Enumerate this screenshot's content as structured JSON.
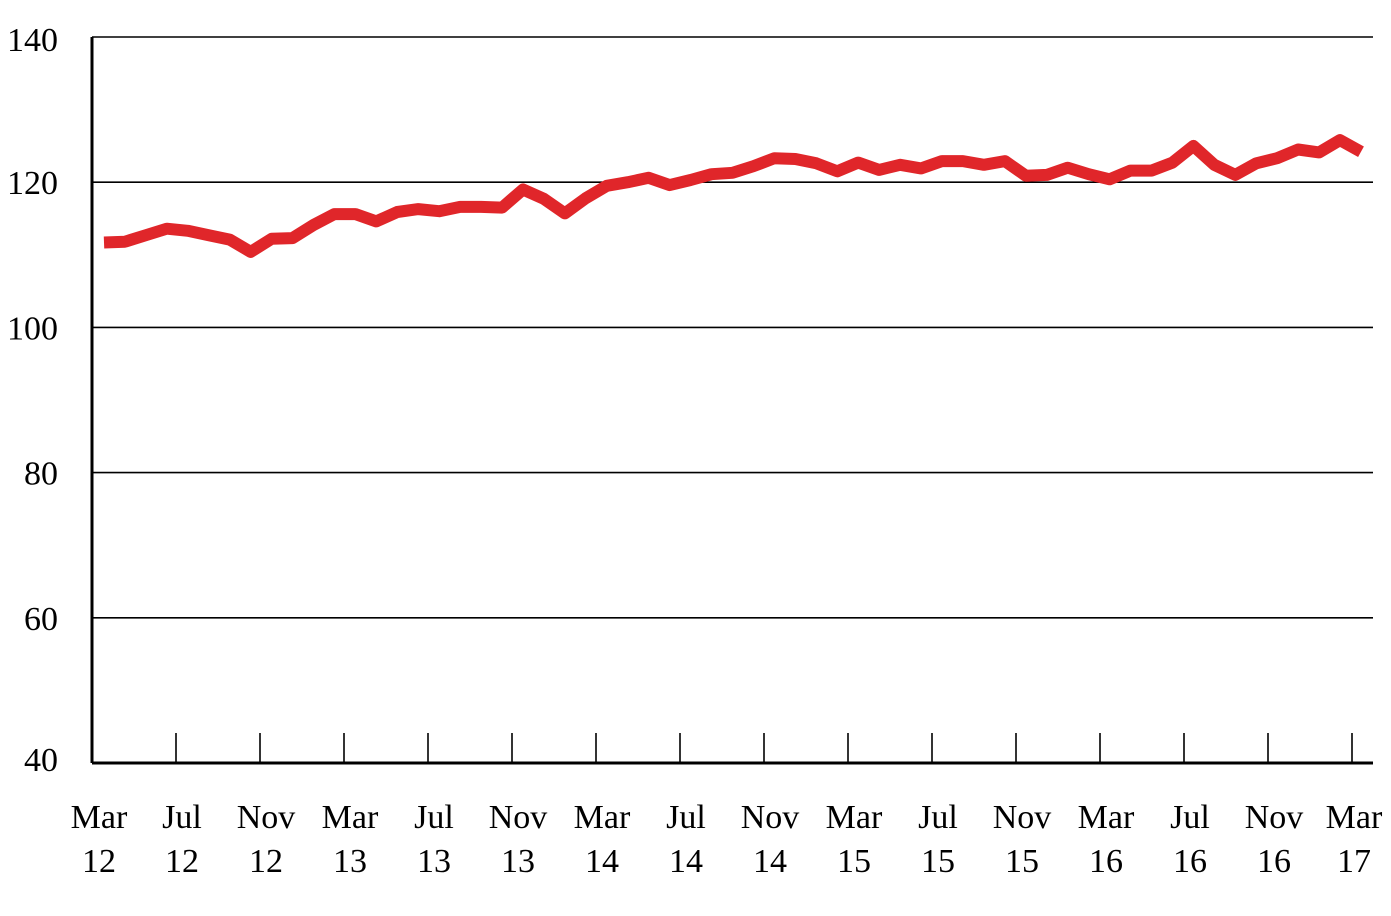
{
  "chart_data": {
    "type": "line",
    "title": "",
    "xlabel": "",
    "ylabel": "",
    "ylim": [
      40,
      140
    ],
    "yticks": [
      40,
      60,
      80,
      100,
      120,
      140
    ],
    "grid": "horizontal",
    "legend": "none",
    "line_color": "#e0262a",
    "x_tick_labels": [
      [
        "Mar",
        "12"
      ],
      [
        "Jul",
        "12"
      ],
      [
        "Nov",
        "12"
      ],
      [
        "Mar",
        "13"
      ],
      [
        "Jul",
        "13"
      ],
      [
        "Nov",
        "13"
      ],
      [
        "Mar",
        "14"
      ],
      [
        "Jul",
        "14"
      ],
      [
        "Nov",
        "14"
      ],
      [
        "Mar",
        "15"
      ],
      [
        "Jul",
        "15"
      ],
      [
        "Nov",
        "15"
      ],
      [
        "Mar",
        "16"
      ],
      [
        "Jul",
        "16"
      ],
      [
        "Nov",
        "16"
      ],
      [
        "Mar",
        "17"
      ]
    ],
    "x": [
      "2012-03",
      "2012-04",
      "2012-05",
      "2012-06",
      "2012-07",
      "2012-08",
      "2012-09",
      "2012-10",
      "2012-11",
      "2012-12",
      "2013-01",
      "2013-02",
      "2013-03",
      "2013-04",
      "2013-05",
      "2013-06",
      "2013-07",
      "2013-08",
      "2013-09",
      "2013-10",
      "2013-11",
      "2013-12",
      "2014-01",
      "2014-02",
      "2014-03",
      "2014-04",
      "2014-05",
      "2014-06",
      "2014-07",
      "2014-08",
      "2014-09",
      "2014-10",
      "2014-11",
      "2014-12",
      "2015-01",
      "2015-02",
      "2015-03",
      "2015-04",
      "2015-05",
      "2015-06",
      "2015-07",
      "2015-08",
      "2015-09",
      "2015-10",
      "2015-11",
      "2015-12",
      "2016-01",
      "2016-02",
      "2016-03",
      "2016-04",
      "2016-05",
      "2016-06",
      "2016-07",
      "2016-08",
      "2016-09",
      "2016-10",
      "2016-11",
      "2016-12",
      "2017-01",
      "2017-02",
      "2017-03"
    ],
    "series": [
      {
        "values": [
          111.7,
          111.8,
          112.7,
          113.6,
          113.3,
          112.7,
          112.1,
          110.4,
          112.2,
          112.3,
          114.1,
          115.6,
          115.6,
          114.6,
          115.9,
          116.3,
          116.0,
          116.6,
          116.6,
          116.5,
          119.0,
          117.7,
          115.7,
          117.8,
          119.5,
          120.0,
          120.6,
          119.6,
          120.3,
          121.1,
          121.3,
          122.2,
          123.3,
          123.2,
          122.6,
          121.5,
          122.7,
          121.7,
          122.4,
          121.9,
          122.9,
          122.9,
          122.4,
          122.9,
          120.9,
          121.0,
          122.0,
          121.1,
          120.4,
          121.6,
          121.6,
          122.7,
          125.0,
          122.4,
          121.0,
          122.6,
          123.3,
          124.5,
          124.1,
          125.8,
          124.2
        ]
      }
    ]
  }
}
